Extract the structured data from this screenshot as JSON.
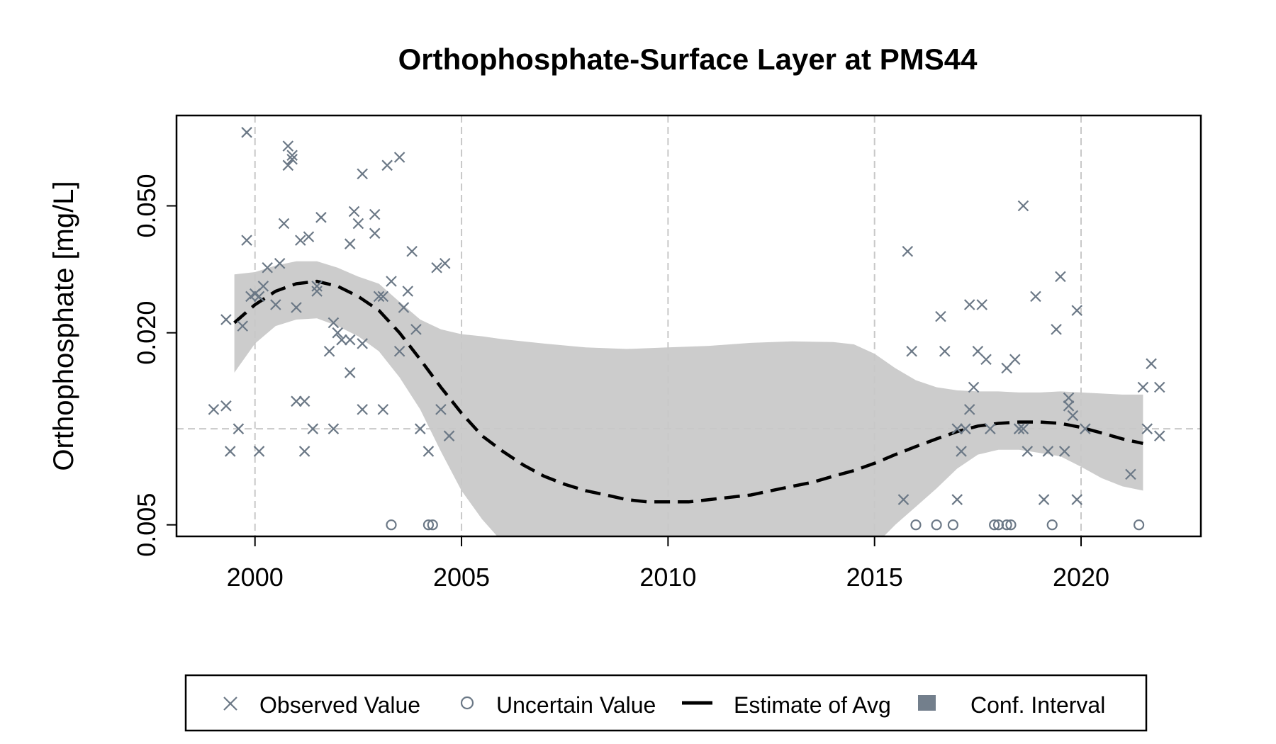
{
  "chart_data": {
    "type": "scatter",
    "title": "Orthophosphate-Surface Layer at PMS44",
    "xlabel": "",
    "ylabel": "Orthophosphate [mg/L]",
    "y_scale": "log",
    "xlim": [
      1998.1,
      2022.9
    ],
    "ylim": [
      0.0046,
      0.096
    ],
    "x_ticks": [
      "2000",
      "2005",
      "2010",
      "2015",
      "2020"
    ],
    "y_ticks": [
      "0.005",
      "0.020",
      "0.050"
    ],
    "grid": {
      "vertical_dashed": true,
      "horizontal_reference": 0.01
    },
    "legend_position": "bottom",
    "colors": {
      "points": "#6b7886",
      "line": "#000000",
      "band": "#cccccc",
      "band_legend": "#737f8c"
    },
    "legend": {
      "observed": "Observed Value",
      "uncertain": "Uncertain Value",
      "estimate": "Estimate of Avg",
      "interval": "Conf. Interval"
    },
    "series": [
      {
        "name": "Observed Value",
        "marker": "x",
        "points": [
          [
            1999.0,
            0.0115
          ],
          [
            1999.3,
            0.022
          ],
          [
            1999.3,
            0.0118
          ],
          [
            1999.4,
            0.0085
          ],
          [
            1999.6,
            0.01
          ],
          [
            1999.7,
            0.021
          ],
          [
            1999.8,
            0.085
          ],
          [
            1999.8,
            0.039
          ],
          [
            1999.9,
            0.026
          ],
          [
            2000.0,
            0.0265
          ],
          [
            2000.1,
            0.026
          ],
          [
            2000.1,
            0.0085
          ],
          [
            2000.2,
            0.028
          ],
          [
            2000.3,
            0.032
          ],
          [
            2000.5,
            0.0245
          ],
          [
            2000.6,
            0.033
          ],
          [
            2000.7,
            0.044
          ],
          [
            2000.8,
            0.077
          ],
          [
            2000.9,
            0.072
          ],
          [
            2000.9,
            0.07
          ],
          [
            2000.8,
            0.067
          ],
          [
            2001.0,
            0.024
          ],
          [
            2001.0,
            0.0122
          ],
          [
            2001.1,
            0.039
          ],
          [
            2001.2,
            0.0122
          ],
          [
            2001.2,
            0.0085
          ],
          [
            2001.3,
            0.04
          ],
          [
            2001.4,
            0.01
          ],
          [
            2001.5,
            0.028
          ],
          [
            2001.5,
            0.027
          ],
          [
            2001.6,
            0.046
          ],
          [
            2001.8,
            0.0175
          ],
          [
            2001.9,
            0.01
          ],
          [
            2001.9,
            0.0215
          ],
          [
            2002.0,
            0.02
          ],
          [
            2002.1,
            0.019
          ],
          [
            2002.3,
            0.019
          ],
          [
            2002.3,
            0.015
          ],
          [
            2002.3,
            0.038
          ],
          [
            2002.4,
            0.048
          ],
          [
            2002.5,
            0.044
          ],
          [
            2002.6,
            0.0115
          ],
          [
            2002.6,
            0.0185
          ],
          [
            2002.6,
            0.063
          ],
          [
            2002.9,
            0.041
          ],
          [
            2002.9,
            0.047
          ],
          [
            2003.0,
            0.026
          ],
          [
            2003.1,
            0.026
          ],
          [
            2003.1,
            0.0115
          ],
          [
            2003.2,
            0.067
          ],
          [
            2003.3,
            0.029
          ],
          [
            2003.5,
            0.071
          ],
          [
            2003.5,
            0.0175
          ],
          [
            2003.6,
            0.024
          ],
          [
            2003.7,
            0.027
          ],
          [
            2003.8,
            0.036
          ],
          [
            2003.9,
            0.0205
          ],
          [
            2004.0,
            0.01
          ],
          [
            2004.2,
            0.0085
          ],
          [
            2004.4,
            0.032
          ],
          [
            2004.5,
            0.0115
          ],
          [
            2004.6,
            0.033
          ],
          [
            2004.7,
            0.0095
          ],
          [
            2015.7,
            0.006
          ],
          [
            2015.8,
            0.036
          ],
          [
            2015.9,
            0.0175
          ],
          [
            2016.6,
            0.0225
          ],
          [
            2016.7,
            0.0175
          ],
          [
            2017.0,
            0.01
          ],
          [
            2017.0,
            0.006
          ],
          [
            2017.1,
            0.0085
          ],
          [
            2017.2,
            0.01
          ],
          [
            2017.3,
            0.0245
          ],
          [
            2017.3,
            0.0115
          ],
          [
            2017.4,
            0.0135
          ],
          [
            2017.5,
            0.0175
          ],
          [
            2017.6,
            0.0245
          ],
          [
            2017.7,
            0.0165
          ],
          [
            2017.8,
            0.01
          ],
          [
            2018.2,
            0.0155
          ],
          [
            2018.4,
            0.0165
          ],
          [
            2018.5,
            0.01
          ],
          [
            2018.6,
            0.01
          ],
          [
            2018.6,
            0.05
          ],
          [
            2018.7,
            0.0085
          ],
          [
            2018.9,
            0.026
          ],
          [
            2019.1,
            0.006
          ],
          [
            2019.2,
            0.0085
          ],
          [
            2019.4,
            0.0205
          ],
          [
            2019.5,
            0.03
          ],
          [
            2019.6,
            0.0085
          ],
          [
            2019.7,
            0.0125
          ],
          [
            2019.7,
            0.0118
          ],
          [
            2019.8,
            0.011
          ],
          [
            2019.9,
            0.0235
          ],
          [
            2019.9,
            0.006
          ],
          [
            2020.1,
            0.01
          ],
          [
            2021.2,
            0.0072
          ],
          [
            2021.5,
            0.0135
          ],
          [
            2021.6,
            0.01
          ],
          [
            2021.7,
            0.016
          ],
          [
            2021.9,
            0.0135
          ],
          [
            2021.9,
            0.0095
          ]
        ]
      },
      {
        "name": "Uncertain Value",
        "marker": "circle",
        "points": [
          [
            2003.3,
            0.005
          ],
          [
            2004.2,
            0.005
          ],
          [
            2004.3,
            0.005
          ],
          [
            2016.0,
            0.005
          ],
          [
            2016.5,
            0.005
          ],
          [
            2016.9,
            0.005
          ],
          [
            2017.9,
            0.005
          ],
          [
            2018.0,
            0.005
          ],
          [
            2018.2,
            0.005
          ],
          [
            2018.3,
            0.005
          ],
          [
            2019.3,
            0.005
          ],
          [
            2021.4,
            0.005
          ]
        ]
      },
      {
        "name": "Estimate of Avg",
        "marker": "dashed-line",
        "points": [
          [
            1999.5,
            0.0215
          ],
          [
            2000.0,
            0.0245
          ],
          [
            2000.5,
            0.027
          ],
          [
            2001.0,
            0.0285
          ],
          [
            2001.5,
            0.029
          ],
          [
            2002.0,
            0.028
          ],
          [
            2002.5,
            0.026
          ],
          [
            2003.0,
            0.0235
          ],
          [
            2003.5,
            0.02
          ],
          [
            2004.0,
            0.0165
          ],
          [
            2004.5,
            0.0135
          ],
          [
            2005.0,
            0.0112
          ],
          [
            2005.5,
            0.0095
          ],
          [
            2006.0,
            0.0085
          ],
          [
            2006.5,
            0.0077
          ],
          [
            2007.0,
            0.0071
          ],
          [
            2007.5,
            0.0067
          ],
          [
            2008.0,
            0.0064
          ],
          [
            2008.5,
            0.0062
          ],
          [
            2009.0,
            0.006
          ],
          [
            2009.5,
            0.0059
          ],
          [
            2010.0,
            0.0059
          ],
          [
            2010.5,
            0.0059
          ],
          [
            2011.0,
            0.006
          ],
          [
            2011.5,
            0.0061
          ],
          [
            2012.0,
            0.0062
          ],
          [
            2012.5,
            0.0064
          ],
          [
            2013.0,
            0.0066
          ],
          [
            2013.5,
            0.0068
          ],
          [
            2014.0,
            0.0071
          ],
          [
            2014.5,
            0.0074
          ],
          [
            2015.0,
            0.0078
          ],
          [
            2015.5,
            0.0083
          ],
          [
            2016.0,
            0.0088
          ],
          [
            2016.5,
            0.0093
          ],
          [
            2017.0,
            0.0098
          ],
          [
            2017.5,
            0.0102
          ],
          [
            2018.0,
            0.0104
          ],
          [
            2018.5,
            0.0105
          ],
          [
            2019.0,
            0.0105
          ],
          [
            2019.5,
            0.0104
          ],
          [
            2020.0,
            0.0101
          ],
          [
            2020.5,
            0.0097
          ],
          [
            2021.0,
            0.0093
          ],
          [
            2021.5,
            0.009
          ]
        ]
      },
      {
        "name": "Conf. Interval",
        "marker": "band",
        "x": [
          1999.5,
          2000.0,
          2000.5,
          2001.0,
          2001.5,
          2002.0,
          2002.5,
          2003.0,
          2003.5,
          2004.0,
          2004.5,
          2005.0,
          2005.5,
          2006.0,
          2007.0,
          2008.0,
          2009.0,
          2010.0,
          2011.0,
          2012.0,
          2013.0,
          2014.0,
          2014.5,
          2015.0,
          2015.5,
          2016.0,
          2016.5,
          2017.0,
          2017.5,
          2018.0,
          2018.5,
          2019.0,
          2019.5,
          2020.0,
          2020.5,
          2021.0,
          2021.5
        ],
        "upper": [
          0.0305,
          0.031,
          0.0325,
          0.0335,
          0.0335,
          0.032,
          0.03,
          0.0285,
          0.025,
          0.022,
          0.0205,
          0.0198,
          0.0195,
          0.0191,
          0.0185,
          0.018,
          0.0178,
          0.018,
          0.0182,
          0.0186,
          0.0188,
          0.0187,
          0.0184,
          0.0172,
          0.0155,
          0.0142,
          0.0135,
          0.0132,
          0.0131,
          0.0131,
          0.013,
          0.013,
          0.0131,
          0.013,
          0.0129,
          0.0128,
          0.0128
        ],
        "lower": [
          0.015,
          0.0185,
          0.021,
          0.022,
          0.0222,
          0.021,
          0.0195,
          0.0175,
          0.0145,
          0.0115,
          0.0085,
          0.0064,
          0.0052,
          0.0044,
          0.0035,
          0.003,
          0.0027,
          0.0026,
          0.0027,
          0.0028,
          0.003,
          0.0033,
          0.0037,
          0.0043,
          0.005,
          0.0057,
          0.0065,
          0.0075,
          0.0083,
          0.0086,
          0.0086,
          0.0084,
          0.0082,
          0.0076,
          0.007,
          0.0066,
          0.0064
        ]
      }
    ]
  }
}
